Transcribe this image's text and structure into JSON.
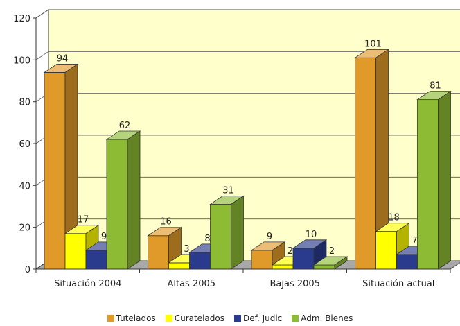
{
  "chart_data": {
    "type": "bar",
    "categories": [
      "Situación 2004",
      "Altas 2005",
      "Bajas 2005",
      "Situación actual"
    ],
    "series": [
      {
        "name": "Tutelados",
        "values": [
          94,
          16,
          9,
          101
        ],
        "color": "#e09a2a"
      },
      {
        "name": "Curatelados",
        "values": [
          17,
          3,
          2,
          18
        ],
        "color": "#ffff00"
      },
      {
        "name": "Def. Judic",
        "values": [
          9,
          8,
          10,
          7
        ],
        "color": "#2a3a8c"
      },
      {
        "name": "Adm. Bienes",
        "values": [
          62,
          31,
          2,
          81
        ],
        "color": "#8dbb33"
      }
    ],
    "title": "",
    "xlabel": "",
    "ylabel": "",
    "ylim": [
      0,
      120
    ],
    "yticks": [
      0,
      20,
      40,
      60,
      80,
      100,
      120
    ],
    "grid": true,
    "legend_position": "bottom",
    "style": "3d",
    "plot_background": "#ffffcc"
  }
}
